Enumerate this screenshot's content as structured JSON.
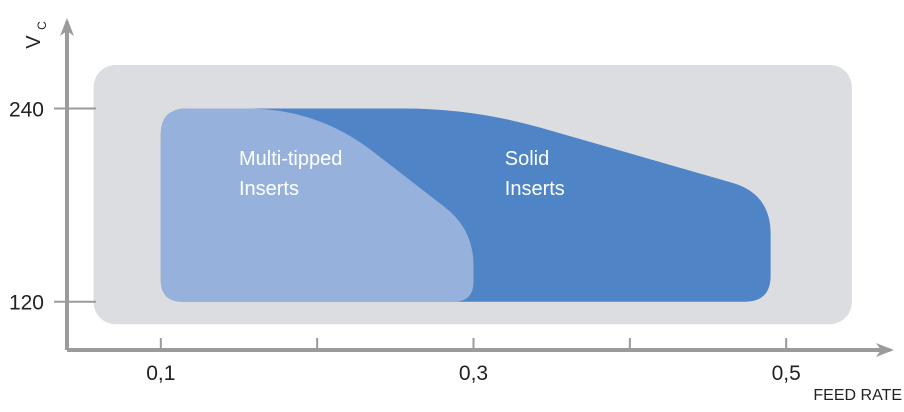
{
  "chart_data": {
    "type": "area",
    "xlabel": "FEED RATE",
    "ylabel": "V",
    "ylabel_subscript": "C",
    "x_ticks": [
      {
        "value": 0.1,
        "label": "0,1"
      },
      {
        "value": 0.2,
        "label": ""
      },
      {
        "value": 0.3,
        "label": "0,3"
      },
      {
        "value": 0.4,
        "label": ""
      },
      {
        "value": 0.5,
        "label": "0,5"
      }
    ],
    "y_ticks": [
      {
        "value": 120,
        "label": "120"
      },
      {
        "value": 240,
        "label": "240"
      }
    ],
    "xlim": [
      0.04,
      0.56
    ],
    "ylim": [
      90,
      285
    ],
    "grid": false,
    "legend": "none",
    "background_region": {
      "x": [
        0.057,
        0.542
      ],
      "y": [
        106,
        267
      ],
      "color": "#dcdde0"
    },
    "series": [
      {
        "name": "Solid Inserts",
        "label_lines": [
          "Solid",
          "Inserts"
        ],
        "label_pos": {
          "x": 0.32,
          "y": 205
        },
        "color": "#4f84c6",
        "outline": [
          [
            0.1,
            120
          ],
          [
            0.1,
            240
          ],
          [
            0.3,
            240
          ],
          [
            0.49,
            187
          ],
          [
            0.49,
            120
          ]
        ]
      },
      {
        "name": "Multi-tipped Inserts",
        "label_lines": [
          "Multi-tipped",
          "Inserts"
        ],
        "label_pos": {
          "x": 0.15,
          "y": 205
        },
        "color": "#97b1dd",
        "outline": [
          [
            0.1,
            120
          ],
          [
            0.1,
            240
          ],
          [
            0.2,
            240
          ],
          [
            0.3,
            165
          ],
          [
            0.3,
            120
          ]
        ]
      }
    ],
    "colors": {
      "axis": "#9b9b9b",
      "tick_text": "#222222",
      "series_text": "#ffffff"
    }
  }
}
